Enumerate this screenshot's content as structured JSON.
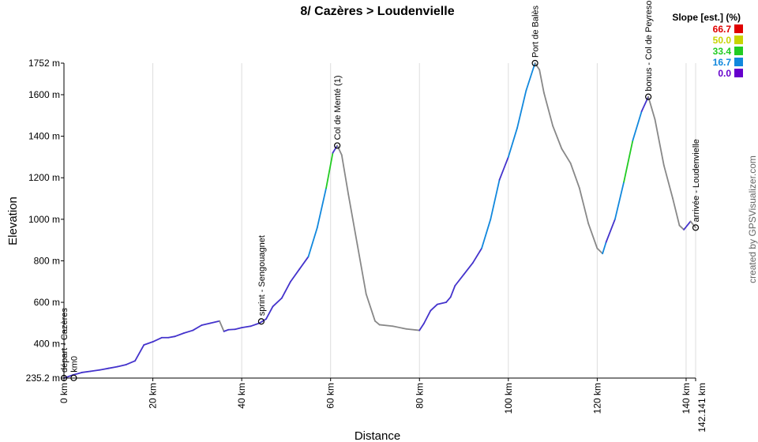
{
  "chart_data": {
    "type": "line",
    "title": "8/ Cazères > Loudenvielle",
    "xlabel": "Distance",
    "ylabel": "Elevation",
    "credit": "created by GPSVisualizer.com",
    "xlim": [
      0,
      142.141
    ],
    "ylim": [
      235.2,
      1752
    ],
    "x_ticks": [
      {
        "value": 0,
        "label": "0 km"
      },
      {
        "value": 20,
        "label": "20 km"
      },
      {
        "value": 40,
        "label": "40 km"
      },
      {
        "value": 60,
        "label": "60 km"
      },
      {
        "value": 80,
        "label": "80 km"
      },
      {
        "value": 100,
        "label": "100 km"
      },
      {
        "value": 120,
        "label": "120 km"
      },
      {
        "value": 140,
        "label": "140 km"
      },
      {
        "value": 142.141,
        "label": "142.141 km"
      }
    ],
    "y_ticks": [
      {
        "value": 235.2,
        "label": "235.2 m"
      },
      {
        "value": 400,
        "label": "400 m"
      },
      {
        "value": 600,
        "label": "600 m"
      },
      {
        "value": 800,
        "label": "800 m"
      },
      {
        "value": 1000,
        "label": "1000 m"
      },
      {
        "value": 1200,
        "label": "1200 m"
      },
      {
        "value": 1400,
        "label": "1400 m"
      },
      {
        "value": 1600,
        "label": "1600 m"
      },
      {
        "value": 1752,
        "label": "1752 m"
      }
    ],
    "grid": "vertical",
    "legend": {
      "title": "Slope [est.] (%)",
      "placement": "top-right",
      "items": [
        {
          "label": "66.7",
          "color": "#e00000"
        },
        {
          "label": "50.0",
          "color": "#c8d400"
        },
        {
          "label": "33.4",
          "color": "#22cc22"
        },
        {
          "label": "16.7",
          "color": "#1188dd"
        },
        {
          "label": "0.0",
          "color": "#6600cc"
        }
      ]
    },
    "series": [
      {
        "x": [
          0,
          2,
          4,
          6,
          8,
          10,
          12,
          14,
          16,
          18,
          20,
          22,
          23.5,
          25,
          27,
          29,
          31,
          33,
          35,
          36,
          37,
          38.5,
          40,
          42,
          44,
          45.5,
          47,
          49,
          51,
          53,
          55,
          57,
          59,
          60.5,
          61.5,
          62.5,
          64,
          66,
          68,
          70,
          71,
          74,
          77,
          80,
          81,
          82.5,
          84,
          86,
          87,
          88,
          90,
          92,
          94,
          96,
          98,
          100,
          102,
          104,
          106,
          107,
          108,
          110,
          112,
          114,
          116,
          118,
          120,
          121.2,
          122,
          124,
          126,
          128,
          130,
          131.5,
          133,
          135,
          137,
          138.5,
          139.5,
          141,
          142.141
        ],
        "y": [
          235,
          250,
          262,
          268,
          274,
          282,
          290,
          300,
          318,
          395,
          410,
          430,
          430,
          436,
          452,
          465,
          490,
          500,
          510,
          460,
          468,
          470,
          478,
          485,
          500,
          520,
          580,
          620,
          700,
          760,
          820,
          960,
          1150,
          1320,
          1355,
          1310,
          1120,
          880,
          640,
          510,
          492,
          485,
          472,
          465,
          498,
          560,
          590,
          600,
          625,
          680,
          735,
          790,
          860,
          1000,
          1190,
          1300,
          1440,
          1620,
          1752,
          1720,
          1610,
          1450,
          1340,
          1270,
          1150,
          980,
          860,
          835,
          890,
          1000,
          1180,
          1380,
          1520,
          1590,
          1480,
          1260,
          1100,
          970,
          950,
          990,
          960
        ]
      }
    ],
    "waypoints": [
      {
        "x": 0,
        "y": 235.2,
        "label": "départ - Cazères"
      },
      {
        "x": 2.2,
        "y": 236,
        "label": "km0"
      },
      {
        "x": 44.4,
        "y": 508,
        "label": "sprint - Sengouagnet"
      },
      {
        "x": 61.5,
        "y": 1355,
        "label": "Col de Menté (1)"
      },
      {
        "x": 106,
        "y": 1752,
        "label": "Port de Balès"
      },
      {
        "x": 131.5,
        "y": 1590,
        "label": "bonus - Col de Peyresourde"
      },
      {
        "x": 142.141,
        "y": 960,
        "label": "arrivée - Loudenvielle"
      }
    ]
  }
}
